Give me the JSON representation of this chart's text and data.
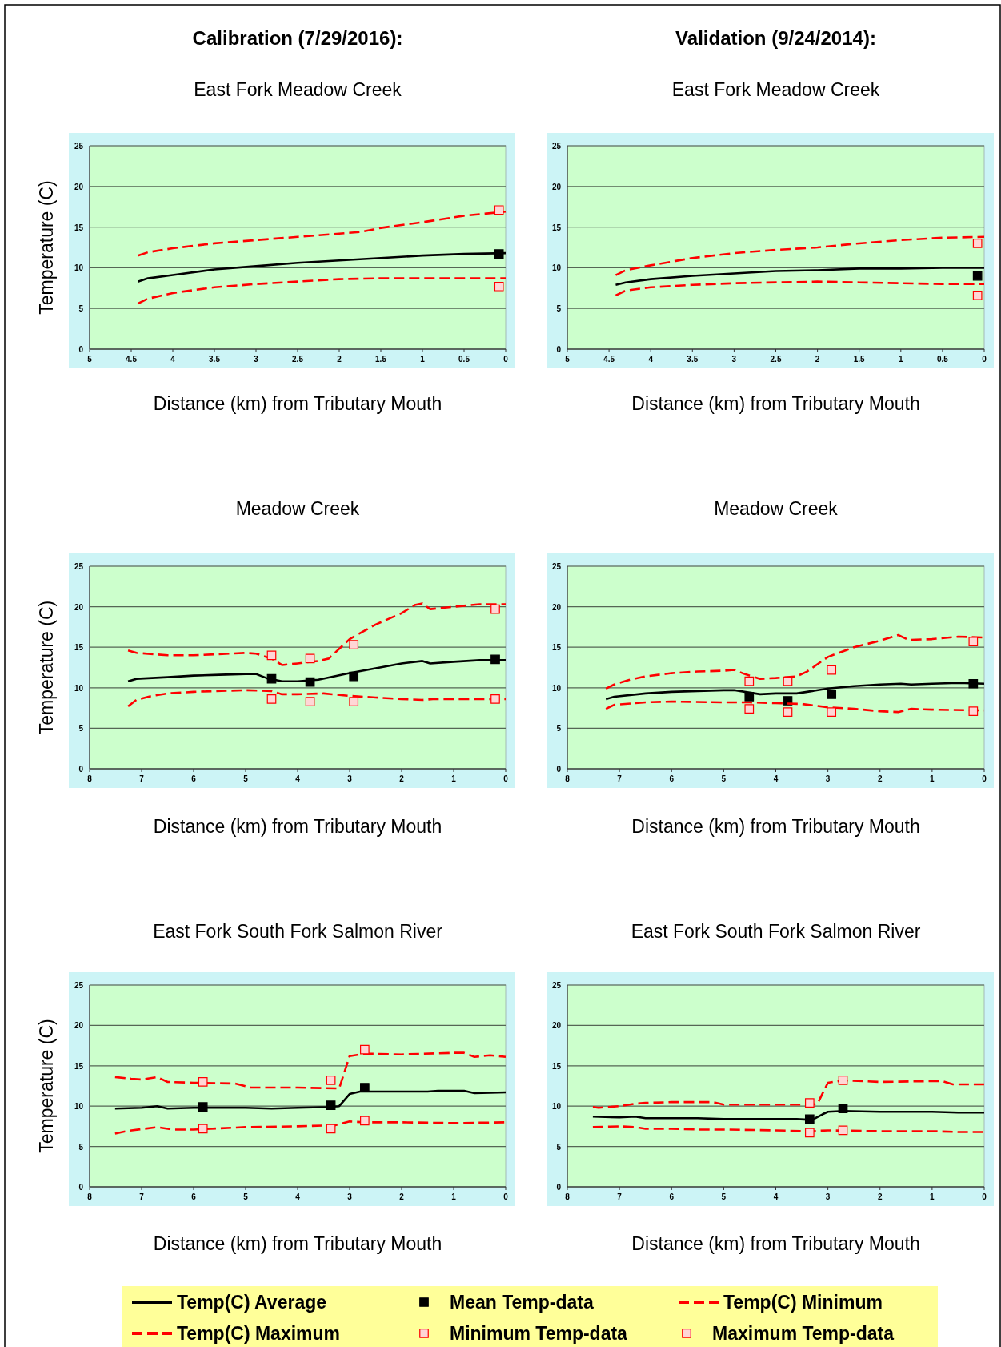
{
  "chart_data": [
    {
      "type": "line",
      "title": "Calibration (7/29/2016):",
      "subtitle": "East Fork Meadow Creek",
      "xlabel": "Distance (km) from Tributary Mouth",
      "ylabel": "Temperature (C)",
      "xlim": [
        5,
        0
      ],
      "xticks": [
        5,
        4.5,
        4,
        3.5,
        3,
        2.5,
        2,
        1.5,
        1,
        0.5,
        0
      ],
      "ylim": [
        0,
        25
      ],
      "yticks": [
        0,
        5,
        10,
        15,
        20,
        25
      ],
      "grid": "y",
      "legend": "bottom",
      "series": [
        {
          "name": "Temp(C) Average",
          "color": "#000000",
          "line_style": "solid",
          "x": [
            4.42,
            4.3,
            4,
            3.5,
            3,
            2.5,
            2,
            1.5,
            1,
            0.5,
            0
          ],
          "values": [
            8.3,
            8.7,
            9.1,
            9.8,
            10.2,
            10.6,
            10.9,
            11.2,
            11.5,
            11.7,
            11.8
          ]
        },
        {
          "name": "Mean Temp-data",
          "type": "scatter",
          "marker": "square",
          "color": "#000000",
          "x": [
            0.08
          ],
          "values": [
            11.7
          ]
        },
        {
          "name": "Temp(C) Minimum",
          "color": "#ff0000",
          "line_style": "dashed",
          "x": [
            4.42,
            4.3,
            4,
            3.5,
            3,
            2.5,
            2,
            1.5,
            1,
            0
          ],
          "values": [
            5.6,
            6.2,
            6.9,
            7.6,
            8,
            8.3,
            8.6,
            8.7,
            8.7,
            8.7
          ]
        },
        {
          "name": "Temp(C) Maximum",
          "color": "#ff0000",
          "line_style": "dashed",
          "x": [
            4.42,
            4.3,
            4,
            3.5,
            3,
            2.5,
            2,
            1.75,
            1.5,
            1,
            0.5,
            0
          ],
          "values": [
            11.5,
            11.9,
            12.4,
            13,
            13.4,
            13.8,
            14.2,
            14.4,
            14.9,
            15.6,
            16.4,
            16.9
          ]
        },
        {
          "name": "Minimum Temp-data",
          "type": "scatter",
          "marker": "square",
          "color": "#ffd6d6",
          "x": [
            0.08
          ],
          "values": [
            7.7
          ]
        },
        {
          "name": "Maximum Temp-data",
          "type": "scatter",
          "marker": "square",
          "color": "#ffd6d6",
          "x": [
            0.08
          ],
          "values": [
            17.1
          ]
        }
      ]
    },
    {
      "type": "line",
      "title": "Validation (9/24/2014):",
      "subtitle": "East Fork Meadow Creek",
      "xlabel": "Distance (km) from Tributary Mouth",
      "xlim": [
        5,
        0
      ],
      "xticks": [
        5,
        4.5,
        4,
        3.5,
        3,
        2.5,
        2,
        1.5,
        1,
        0.5,
        0
      ],
      "ylim": [
        0,
        25
      ],
      "yticks": [
        0,
        5,
        10,
        15,
        20,
        25
      ],
      "grid": "y",
      "series": [
        {
          "color": "#000000",
          "line_style": "solid",
          "x": [
            4.42,
            4.3,
            4,
            3.5,
            3,
            2.5,
            2,
            1.5,
            1,
            0.5,
            0
          ],
          "values": [
            7.9,
            8.2,
            8.6,
            9.0,
            9.3,
            9.6,
            9.7,
            9.9,
            9.9,
            10,
            10
          ]
        },
        {
          "type": "scatter",
          "marker": "square",
          "color": "#000000",
          "x": [
            0.08
          ],
          "values": [
            9.0
          ]
        },
        {
          "color": "#ff0000",
          "line_style": "dashed",
          "x": [
            4.42,
            4.3,
            4,
            3.5,
            3,
            2,
            1.5,
            1,
            0.5,
            0
          ],
          "values": [
            6.6,
            7.2,
            7.6,
            7.9,
            8.1,
            8.3,
            8.2,
            8.1,
            8.0,
            8.0
          ]
        },
        {
          "color": "#ff0000",
          "line_style": "dashed",
          "x": [
            4.42,
            4.3,
            4,
            3.5,
            3,
            2.5,
            2,
            1.5,
            1,
            0.5,
            0
          ],
          "values": [
            9.1,
            9.7,
            10.3,
            11.2,
            11.8,
            12.2,
            12.5,
            13,
            13.4,
            13.7,
            13.8
          ]
        },
        {
          "type": "scatter",
          "marker": "square",
          "color": "#ffd6d6",
          "x": [
            0.08
          ],
          "values": [
            6.6
          ]
        },
        {
          "type": "scatter",
          "marker": "square",
          "color": "#ffd6d6",
          "x": [
            0.08
          ],
          "values": [
            13.0
          ]
        }
      ]
    },
    {
      "type": "line",
      "subtitle": "Meadow Creek",
      "xlabel": "Distance (km) from Tributary Mouth",
      "ylabel": "Temperature (C)",
      "xlim": [
        8,
        0
      ],
      "xticks": [
        8,
        7,
        6,
        5,
        4,
        3,
        2,
        1,
        0
      ],
      "ylim": [
        0,
        25
      ],
      "yticks": [
        0,
        5,
        10,
        15,
        20,
        25
      ],
      "grid": "y",
      "series": [
        {
          "color": "#000000",
          "line_style": "solid",
          "x": [
            7.26,
            7.1,
            6.5,
            6,
            5.5,
            5,
            4.8,
            4.6,
            4.3,
            4,
            3.6,
            3,
            2.5,
            2,
            1.6,
            1.45,
            1,
            0.5,
            0
          ],
          "values": [
            10.8,
            11.1,
            11.3,
            11.5,
            11.6,
            11.7,
            11.7,
            11.2,
            10.8,
            10.8,
            11.0,
            11.8,
            12.4,
            13.0,
            13.3,
            13.0,
            13.2,
            13.4,
            13.4
          ]
        },
        {
          "type": "scatter",
          "marker": "square",
          "color": "#000000",
          "x": [
            4.5,
            3.76,
            2.92,
            0.2
          ],
          "values": [
            11.1,
            10.7,
            11.4,
            13.5
          ]
        },
        {
          "color": "#ff0000",
          "line_style": "dashed",
          "x": [
            7.26,
            7.1,
            6.8,
            6.5,
            6,
            5,
            4.5,
            4.3,
            4,
            3.5,
            3,
            2.5,
            2,
            1.6,
            1.4,
            1,
            0
          ],
          "values": [
            7.7,
            8.5,
            9.0,
            9.3,
            9.5,
            9.7,
            9.6,
            9.2,
            9.2,
            9.3,
            9.0,
            8.8,
            8.6,
            8.5,
            8.6,
            8.6,
            8.6
          ]
        },
        {
          "color": "#ff0000",
          "line_style": "dashed",
          "x": [
            7.26,
            7.1,
            6.5,
            6,
            5,
            4.8,
            4.5,
            4.3,
            4,
            3.6,
            3.4,
            3,
            2.5,
            2,
            1.75,
            1.6,
            1.45,
            1,
            0.5,
            0
          ],
          "values": [
            14.6,
            14.3,
            14.0,
            14.0,
            14.3,
            14.2,
            13.6,
            12.8,
            13.0,
            13.3,
            13.6,
            16,
            17.8,
            19.2,
            20.2,
            20.4,
            19.7,
            20.0,
            20.3,
            20.3
          ]
        },
        {
          "type": "scatter",
          "marker": "square",
          "color": "#ffd6d6",
          "x": [
            4.5,
            3.76,
            2.92,
            0.2
          ],
          "values": [
            8.6,
            8.3,
            8.3,
            8.6
          ]
        },
        {
          "type": "scatter",
          "marker": "square",
          "color": "#ffd6d6",
          "x": [
            4.5,
            3.76,
            2.92,
            0.2
          ],
          "values": [
            14.0,
            13.6,
            15.3,
            19.7
          ]
        }
      ]
    },
    {
      "type": "line",
      "subtitle": "Meadow Creek",
      "xlabel": "Distance (km) from Tributary Mouth",
      "xlim": [
        8,
        0
      ],
      "xticks": [
        8,
        7,
        6,
        5,
        4,
        3,
        2,
        1,
        0
      ],
      "ylim": [
        0,
        25
      ],
      "yticks": [
        0,
        5,
        10,
        15,
        20,
        25
      ],
      "grid": "y",
      "series": [
        {
          "color": "#000000",
          "line_style": "solid",
          "x": [
            7.26,
            7.1,
            6.5,
            6,
            5.5,
            5,
            4.8,
            4.5,
            4.3,
            4,
            3.6,
            3.3,
            3,
            2.5,
            2,
            1.6,
            1.4,
            1,
            0.5,
            0
          ],
          "values": [
            8.6,
            8.9,
            9.3,
            9.5,
            9.6,
            9.7,
            9.7,
            9.4,
            9.2,
            9.3,
            9.3,
            9.6,
            9.9,
            10.2,
            10.4,
            10.5,
            10.4,
            10.5,
            10.6,
            10.5
          ]
        },
        {
          "type": "scatter",
          "marker": "square",
          "color": "#000000",
          "x": [
            4.51,
            3.77,
            2.93,
            0.21
          ],
          "values": [
            8.9,
            8.4,
            9.2,
            10.5
          ]
        },
        {
          "color": "#ff0000",
          "line_style": "dashed",
          "x": [
            7.26,
            7.1,
            6.5,
            6,
            5,
            4.5,
            4,
            3.5,
            3,
            2.5,
            2,
            1.65,
            1.4,
            1,
            0
          ],
          "values": [
            7.4,
            7.9,
            8.2,
            8.3,
            8.2,
            8.2,
            8.1,
            8.0,
            7.6,
            7.4,
            7.1,
            7.0,
            7.4,
            7.3,
            7.2
          ]
        },
        {
          "color": "#ff0000",
          "line_style": "dashed",
          "x": [
            7.26,
            7.1,
            6.8,
            6.5,
            6,
            5.5,
            5,
            4.8,
            4.6,
            4.3,
            4,
            3.6,
            3.4,
            3,
            2.5,
            2,
            1.65,
            1.45,
            1,
            0.5,
            0
          ],
          "values": [
            9.9,
            10.4,
            11.0,
            11.4,
            11.8,
            12.0,
            12.1,
            12.2,
            11.7,
            11.1,
            11.2,
            11.4,
            12.0,
            13.8,
            15.0,
            15.8,
            16.5,
            15.9,
            16.0,
            16.3,
            16.2
          ]
        },
        {
          "type": "scatter",
          "marker": "square",
          "color": "#ffd6d6",
          "x": [
            4.51,
            3.77,
            2.93,
            0.21
          ],
          "values": [
            7.4,
            7.0,
            7.0,
            7.1
          ]
        },
        {
          "type": "scatter",
          "marker": "square",
          "color": "#ffd6d6",
          "x": [
            4.51,
            3.77,
            2.93,
            0.21
          ],
          "values": [
            10.8,
            10.8,
            12.2,
            15.7
          ]
        }
      ]
    },
    {
      "type": "line",
      "subtitle": "East Fork South Fork Salmon River",
      "xlabel": "Distance (km) from Tributary Mouth",
      "ylabel": "Temperature (C)",
      "xlim": [
        8,
        0
      ],
      "xticks": [
        8,
        7,
        6,
        5,
        4,
        3,
        2,
        1,
        0
      ],
      "ylim": [
        0,
        25
      ],
      "yticks": [
        0,
        5,
        10,
        15,
        20,
        25
      ],
      "grid": "y",
      "series": [
        {
          "color": "#000000",
          "line_style": "solid",
          "x": [
            7.51,
            7,
            6.7,
            6.5,
            6,
            5,
            4.5,
            4,
            3.4,
            3.2,
            3,
            2.8,
            2,
            1.5,
            1.3,
            0.8,
            0.6,
            0
          ],
          "values": [
            9.7,
            9.8,
            10.0,
            9.7,
            9.8,
            9.8,
            9.7,
            9.8,
            9.9,
            10.0,
            11.5,
            11.8,
            11.8,
            11.8,
            11.9,
            11.9,
            11.6,
            11.7
          ]
        },
        {
          "type": "scatter",
          "marker": "square",
          "color": "#000000",
          "x": [
            5.82,
            3.36,
            2.71
          ],
          "values": [
            9.9,
            10.1,
            12.3
          ]
        },
        {
          "color": "#ff0000",
          "line_style": "dashed",
          "x": [
            7.51,
            7.3,
            6.7,
            6.4,
            6,
            5,
            4,
            3.5,
            3.3,
            3.0,
            2.7,
            2,
            1,
            0
          ],
          "values": [
            6.6,
            6.9,
            7.4,
            7.1,
            7.1,
            7.4,
            7.5,
            7.6,
            7.6,
            8.1,
            8.0,
            8.0,
            7.9,
            8.0
          ]
        },
        {
          "color": "#ff0000",
          "line_style": "dashed",
          "x": [
            7.51,
            7.2,
            7,
            6.7,
            6.5,
            6,
            5.2,
            4.9,
            4,
            3.2,
            3.0,
            2.7,
            2,
            1,
            0.8,
            0.6,
            0.3,
            0
          ],
          "values": [
            13.6,
            13.4,
            13.3,
            13.6,
            13.0,
            12.9,
            12.8,
            12.3,
            12.3,
            12.2,
            16.2,
            16.5,
            16.4,
            16.6,
            16.6,
            16.1,
            16.3,
            16.1
          ]
        },
        {
          "type": "scatter",
          "marker": "square",
          "color": "#ffd6d6",
          "x": [
            5.82,
            3.36,
            2.71
          ],
          "values": [
            7.2,
            7.2,
            8.2
          ]
        },
        {
          "type": "scatter",
          "marker": "square",
          "color": "#ffd6d6",
          "x": [
            5.82,
            3.36,
            2.71
          ],
          "values": [
            13.0,
            13.2,
            17.0
          ]
        }
      ]
    },
    {
      "type": "line",
      "subtitle": "East Fork South Fork Salmon River",
      "xlabel": "Distance (km) from Tributary Mouth",
      "xlim": [
        8,
        0
      ],
      "xticks": [
        8,
        7,
        6,
        5,
        4,
        3,
        2,
        1,
        0
      ],
      "ylim": [
        0,
        25
      ],
      "yticks": [
        0,
        5,
        10,
        15,
        20,
        25
      ],
      "grid": "y",
      "series": [
        {
          "color": "#000000",
          "line_style": "solid",
          "x": [
            7.51,
            7,
            6.7,
            6.5,
            6,
            5.5,
            5,
            4,
            3.6,
            3.3,
            3.1,
            3.0,
            2.7,
            2,
            1,
            0.5,
            0
          ],
          "values": [
            8.7,
            8.6,
            8.7,
            8.5,
            8.5,
            8.5,
            8.4,
            8.4,
            8.4,
            8.3,
            9.0,
            9.3,
            9.4,
            9.3,
            9.3,
            9.2,
            9.2
          ]
        },
        {
          "type": "scatter",
          "marker": "square",
          "color": "#000000",
          "x": [
            3.35,
            2.71
          ],
          "values": [
            8.4,
            9.7
          ]
        },
        {
          "color": "#ff0000",
          "line_style": "dashed",
          "x": [
            7.51,
            7,
            6.7,
            6.5,
            6,
            5.5,
            5,
            4,
            3.5,
            3.3,
            3,
            2,
            1,
            0.5,
            0
          ],
          "values": [
            7.4,
            7.5,
            7.4,
            7.2,
            7.2,
            7.1,
            7.1,
            7.0,
            6.9,
            6.9,
            7.0,
            6.9,
            6.9,
            6.8,
            6.8
          ]
        },
        {
          "color": "#ff0000",
          "line_style": "dashed",
          "x": [
            7.51,
            7.4,
            7,
            6.7,
            6.5,
            6,
            5.2,
            5,
            4,
            3.3,
            3.2,
            3.0,
            2.7,
            2,
            1,
            0.8,
            0.6,
            0
          ],
          "values": [
            9.9,
            9.8,
            10.0,
            10.3,
            10.4,
            10.5,
            10.5,
            10.2,
            10.2,
            10.2,
            10.3,
            12.9,
            13.2,
            13.0,
            13.1,
            13.1,
            12.7,
            12.7
          ]
        },
        {
          "type": "scatter",
          "marker": "square",
          "color": "#ffd6d6",
          "x": [
            3.35,
            2.71
          ],
          "values": [
            6.7,
            7.0
          ]
        },
        {
          "type": "scatter",
          "marker": "square",
          "color": "#ffd6d6",
          "x": [
            3.35,
            2.71
          ],
          "values": [
            10.4,
            13.2
          ]
        }
      ]
    }
  ]
}
